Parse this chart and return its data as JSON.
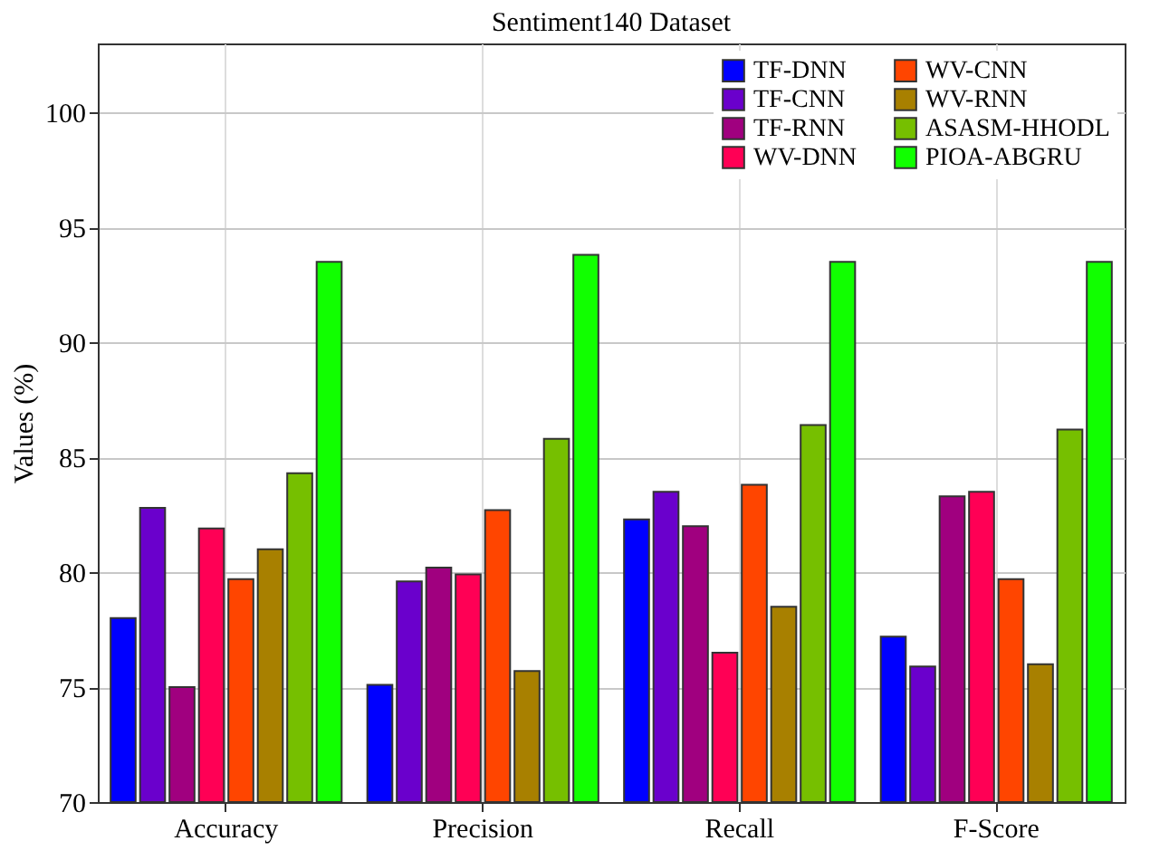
{
  "chart_data": {
    "type": "bar",
    "title": "Sentiment140 Dataset",
    "ylabel": "Values (%)",
    "categories": [
      "Accuracy",
      "Precision",
      "Recall",
      "F-Score"
    ],
    "series": [
      {
        "name": "TF-DNN",
        "color": "#0000ff",
        "values": [
          78.0,
          75.1,
          82.3,
          77.2
        ]
      },
      {
        "name": "TF-CNN",
        "color": "#6a00cc",
        "values": [
          82.8,
          79.6,
          83.5,
          75.9
        ]
      },
      {
        "name": "TF-RNN",
        "color": "#a0007f",
        "values": [
          75.0,
          80.2,
          82.0,
          83.3
        ]
      },
      {
        "name": "WV-DNN",
        "color": "#ff0055",
        "values": [
          81.9,
          79.9,
          76.5,
          83.5
        ]
      },
      {
        "name": "WV-CNN",
        "color": "#ff4500",
        "values": [
          79.7,
          82.7,
          83.8,
          79.7
        ]
      },
      {
        "name": "WV-RNN",
        "color": "#a88000",
        "values": [
          81.0,
          75.7,
          78.5,
          76.0
        ]
      },
      {
        "name": "ASASM-HHODL",
        "color": "#76bf00",
        "values": [
          84.3,
          85.8,
          86.4,
          86.2
        ]
      },
      {
        "name": "PIOA-ABGRU",
        "color": "#11ff00",
        "values": [
          93.5,
          93.8,
          93.5,
          93.5
        ]
      }
    ],
    "ylim": [
      70,
      103
    ],
    "yticks": [
      70,
      75,
      80,
      85,
      90,
      95,
      100
    ],
    "grid": true,
    "legend": "top right"
  }
}
